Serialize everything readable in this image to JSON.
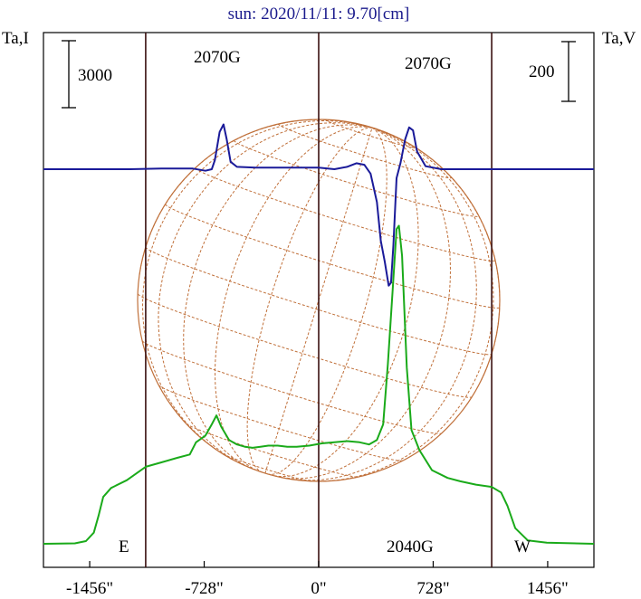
{
  "title": "sun: 2020/11/11: 9.70[cm]",
  "colors": {
    "background": "#ffffff",
    "title": "#1a1a8c",
    "frame": "#000000",
    "limb_lines": "#3a1010",
    "grid": "#c0703a",
    "intensity": "#1aaa1a",
    "polarization": "#1a1a99"
  },
  "axis_left_label": "Ta,I",
  "axis_right_label": "Ta,V",
  "scale_left": "3000",
  "scale_right": "200",
  "limb_east": "E",
  "limb_west": "W",
  "annotations": [
    "2070G",
    "2070G",
    "2040G"
  ],
  "chart_data": {
    "type": "line",
    "title": "sun: 2020/11/11: 9.70[cm]",
    "x_unit": "arcsec",
    "x_range": [
      -1750,
      1750
    ],
    "x_ticks": [
      {
        "value": -1456,
        "label": "-1456\""
      },
      {
        "value": -728,
        "label": "-728\""
      },
      {
        "value": 0,
        "label": "0\""
      },
      {
        "value": 728,
        "label": "728\""
      },
      {
        "value": 1456,
        "label": "1456\""
      }
    ],
    "vertical_lines": [
      -1100,
      0,
      1100
    ],
    "scale_bars": [
      {
        "axis": "left",
        "label": "3000"
      },
      {
        "axis": "right",
        "label": "200"
      }
    ],
    "series": [
      {
        "id": "intensity",
        "axis": "left",
        "color": "#1aaa1a",
        "points": [
          [
            -1750,
            0
          ],
          [
            -1550,
            20
          ],
          [
            -1480,
            120
          ],
          [
            -1430,
            500
          ],
          [
            -1400,
            1250
          ],
          [
            -1370,
            2100
          ],
          [
            -1320,
            2500
          ],
          [
            -1220,
            2850
          ],
          [
            -1100,
            3450
          ],
          [
            -1000,
            3650
          ],
          [
            -900,
            3850
          ],
          [
            -820,
            4000
          ],
          [
            -780,
            4550
          ],
          [
            -720,
            4850
          ],
          [
            -680,
            5350
          ],
          [
            -650,
            5750
          ],
          [
            -620,
            5250
          ],
          [
            -570,
            4650
          ],
          [
            -520,
            4450
          ],
          [
            -470,
            4350
          ],
          [
            -420,
            4300
          ],
          [
            -370,
            4350
          ],
          [
            -320,
            4400
          ],
          [
            -260,
            4400
          ],
          [
            -200,
            4350
          ],
          [
            -140,
            4350
          ],
          [
            -60,
            4400
          ],
          [
            20,
            4500
          ],
          [
            100,
            4550
          ],
          [
            180,
            4600
          ],
          [
            260,
            4550
          ],
          [
            320,
            4450
          ],
          [
            370,
            4650
          ],
          [
            410,
            5350
          ],
          [
            440,
            8050
          ],
          [
            470,
            11300
          ],
          [
            495,
            14100
          ],
          [
            510,
            14250
          ],
          [
            530,
            12900
          ],
          [
            560,
            7900
          ],
          [
            590,
            5100
          ],
          [
            640,
            4200
          ],
          [
            720,
            3300
          ],
          [
            820,
            2950
          ],
          [
            900,
            2800
          ],
          [
            1000,
            2650
          ],
          [
            1100,
            2550
          ],
          [
            1160,
            2300
          ],
          [
            1200,
            1700
          ],
          [
            1250,
            700
          ],
          [
            1330,
            150
          ],
          [
            1450,
            50
          ],
          [
            1750,
            0
          ]
        ]
      },
      {
        "id": "polarization",
        "axis": "right",
        "color": "#1a1a99",
        "points": [
          [
            -1750,
            0
          ],
          [
            -1200,
            0
          ],
          [
            -1000,
            2
          ],
          [
            -800,
            2
          ],
          [
            -720,
            -5
          ],
          [
            -680,
            0
          ],
          [
            -660,
            30
          ],
          [
            -630,
            125
          ],
          [
            -605,
            150
          ],
          [
            -585,
            100
          ],
          [
            -560,
            25
          ],
          [
            -520,
            8
          ],
          [
            -400,
            5
          ],
          [
            -200,
            5
          ],
          [
            0,
            5
          ],
          [
            100,
            0
          ],
          [
            180,
            8
          ],
          [
            240,
            20
          ],
          [
            290,
            15
          ],
          [
            330,
            -15
          ],
          [
            370,
            -110
          ],
          [
            395,
            -240
          ],
          [
            420,
            -310
          ],
          [
            445,
            -390
          ],
          [
            460,
            -380
          ],
          [
            475,
            -255
          ],
          [
            495,
            -30
          ],
          [
            520,
            20
          ],
          [
            550,
            100
          ],
          [
            575,
            140
          ],
          [
            600,
            130
          ],
          [
            625,
            60
          ],
          [
            680,
            10
          ],
          [
            780,
            0
          ],
          [
            1000,
            0
          ],
          [
            1750,
            0
          ]
        ]
      }
    ]
  }
}
